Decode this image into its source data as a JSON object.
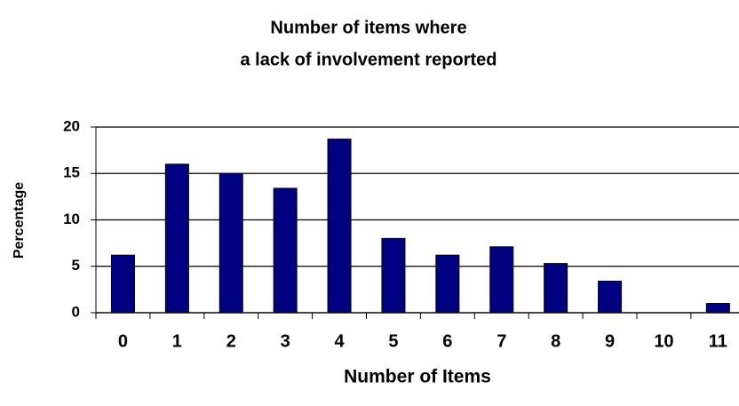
{
  "chart_data": {
    "type": "bar",
    "title": [
      "Number of items where",
      "a lack of involvement reported"
    ],
    "x_label": "Number of Items",
    "y_label": "Percentage",
    "categories": [
      "0",
      "1",
      "2",
      "3",
      "4",
      "5",
      "6",
      "7",
      "8",
      "9",
      "10",
      "11"
    ],
    "values": [
      6.2,
      16.0,
      15.0,
      13.4,
      18.7,
      8.0,
      6.2,
      7.1,
      5.3,
      3.4,
      0,
      1.0
    ],
    "color": "#000080",
    "ylim": [
      0,
      20
    ],
    "yticks": [
      0,
      5,
      10,
      15,
      20
    ],
    "grid": true
  }
}
